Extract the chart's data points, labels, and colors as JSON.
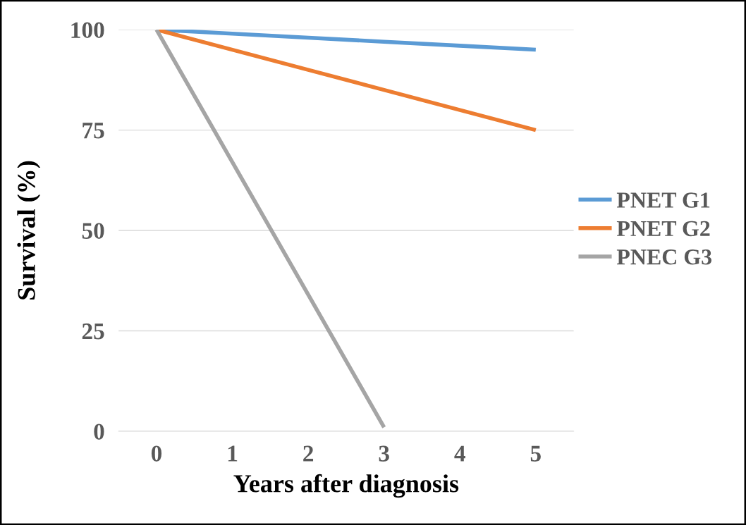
{
  "chart_data": {
    "type": "line",
    "xlabel": "Years after diagnosis",
    "ylabel": "Survival (%)",
    "categories": [
      "0",
      "1",
      "2",
      "3",
      "4",
      "5"
    ],
    "series": [
      {
        "name": "PNET G1",
        "color": "#5b9bd5",
        "values": [
          100,
          99,
          98,
          97,
          96,
          95
        ]
      },
      {
        "name": "PNET G2",
        "color": "#ed7d31",
        "values": [
          100,
          95,
          90,
          85,
          80,
          75
        ]
      },
      {
        "name": "PNEC G3",
        "color": "#a5a5a5",
        "values": [
          100,
          67,
          34,
          1,
          null,
          null
        ]
      }
    ],
    "ylim": [
      0,
      100
    ],
    "yticks": [
      0,
      25,
      50,
      75,
      100
    ],
    "grid": "y",
    "legend": "right",
    "marker": "none",
    "line_style": "solid"
  }
}
